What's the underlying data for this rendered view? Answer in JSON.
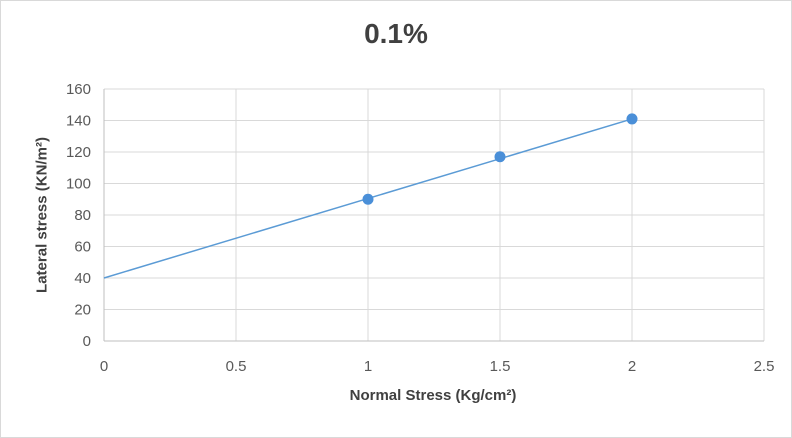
{
  "chart_data": {
    "type": "line",
    "title": "0.1%",
    "xlabel": "Normal Stress (Kg/cm²)",
    "ylabel": "Lateral stress (KN/m²)",
    "xlim": [
      0,
      2.5
    ],
    "ylim": [
      0,
      160
    ],
    "xticks": [
      0,
      0.5,
      1,
      1.5,
      2,
      2.5
    ],
    "xtick_labels": [
      "0",
      "0.5",
      "1",
      "1.5",
      "2",
      "2.5"
    ],
    "yticks": [
      0,
      20,
      40,
      60,
      80,
      100,
      120,
      140,
      160
    ],
    "ytick_labels": [
      "0",
      "20",
      "40",
      "60",
      "80",
      "100",
      "120",
      "140",
      "160"
    ],
    "grid": true,
    "legend": "none",
    "series_color": "#5b9bd5",
    "marker_color": "#4a8fd8",
    "points": {
      "x": [
        1,
        1.5,
        2
      ],
      "y": [
        90,
        117,
        141
      ]
    },
    "trend_line": {
      "x": [
        0,
        2
      ],
      "y": [
        40,
        141
      ]
    }
  }
}
